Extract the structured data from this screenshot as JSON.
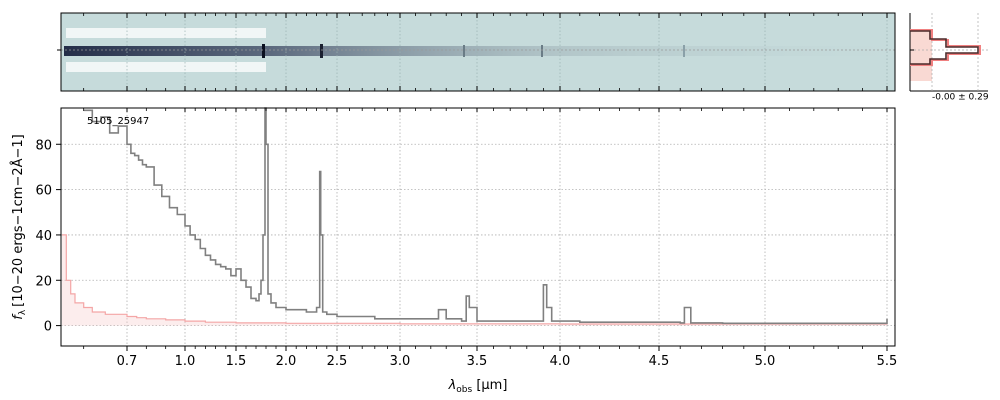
{
  "chart_data": {
    "type": "line",
    "title": "",
    "object_label": "5105_25947",
    "xlabel_symbol": "λ",
    "xlabel_sub": "obs",
    "xlabel_unit": " [μm]",
    "ylabel_f": "f",
    "ylabel_sub": "λ",
    "ylabel_unit": "[10−20 ergs−1cm−2Å−1]",
    "x_ticks": [
      "0.7",
      "1.0",
      "1.5",
      "2.0",
      "2.5",
      "3.0",
      "3.5",
      "4.0",
      "4.5",
      "5.0",
      "5.5"
    ],
    "x_tick_values": [
      0.7,
      1.0,
      1.5,
      2.0,
      2.5,
      3.0,
      3.5,
      4.0,
      4.5,
      5.0,
      5.5
    ],
    "x_scale": "sqrt-like (nonlinear wavelength axis)",
    "xlim": [
      0.55,
      5.52
    ],
    "y_ticks": [
      0,
      20,
      40,
      60,
      80
    ],
    "ylim": [
      -9,
      96
    ],
    "grid": true,
    "series": [
      {
        "name": "",
        "color": "#808080",
        "style": "steps",
        "x": [
          0.6,
          0.62,
          0.64,
          0.66,
          0.68,
          0.7,
          0.72,
          0.74,
          0.76,
          0.78,
          0.8,
          0.84,
          0.88,
          0.92,
          0.96,
          1.0,
          1.05,
          1.1,
          1.15,
          1.2,
          1.25,
          1.3,
          1.35,
          1.4,
          1.45,
          1.5,
          1.55,
          1.6,
          1.65,
          1.7,
          1.73,
          1.75,
          1.77,
          1.79,
          1.8,
          1.82,
          1.85,
          1.9,
          2.0,
          2.1,
          2.2,
          2.3,
          2.33,
          2.34,
          2.36,
          2.4,
          2.5,
          2.6,
          2.7,
          2.8,
          3.0,
          3.2,
          3.25,
          3.3,
          3.4,
          3.43,
          3.45,
          3.5,
          3.7,
          3.85,
          3.9,
          3.92,
          3.95,
          4.1,
          4.3,
          4.5,
          4.6,
          4.62,
          4.65,
          4.8,
          5.0,
          5.2,
          5.4,
          5.5
        ],
        "values": [
          95,
          90,
          92,
          85,
          88,
          80,
          76,
          75,
          73,
          71,
          70,
          62,
          57,
          52,
          49,
          44,
          40,
          38,
          34,
          31,
          29,
          27,
          26,
          25,
          22,
          25,
          20,
          17,
          12,
          11,
          14,
          20,
          40,
          96,
          80,
          14,
          10,
          8,
          7,
          7,
          6,
          8,
          68,
          40,
          6,
          5,
          4,
          4,
          4,
          3,
          3,
          3,
          7,
          3,
          2,
          13,
          8,
          2,
          2,
          2,
          18,
          8,
          2,
          1.5,
          1.5,
          1.5,
          1.2,
          8,
          1.2,
          1,
          1,
          1,
          1,
          3
        ]
      },
      {
        "name": "",
        "color": "#f4a6a6",
        "style": "steps",
        "x": [
          0.55,
          0.56,
          0.57,
          0.58,
          0.6,
          0.62,
          0.65,
          0.7,
          0.75,
          0.8,
          0.9,
          1.0,
          1.2,
          1.5,
          2.0,
          3.0,
          4.0,
          5.0,
          5.5
        ],
        "values": [
          40,
          20,
          14,
          10,
          8,
          6,
          5,
          4,
          3.5,
          3,
          2.5,
          2,
          1.5,
          1.2,
          1,
          0.8,
          0.7,
          0.7,
          0.8
        ]
      }
    ],
    "spectrum2d_panel": {
      "type": "heatmap",
      "colormap": "bone_r"
    },
    "side_panel": {
      "label": "-0.00 ± 0.29"
    }
  }
}
